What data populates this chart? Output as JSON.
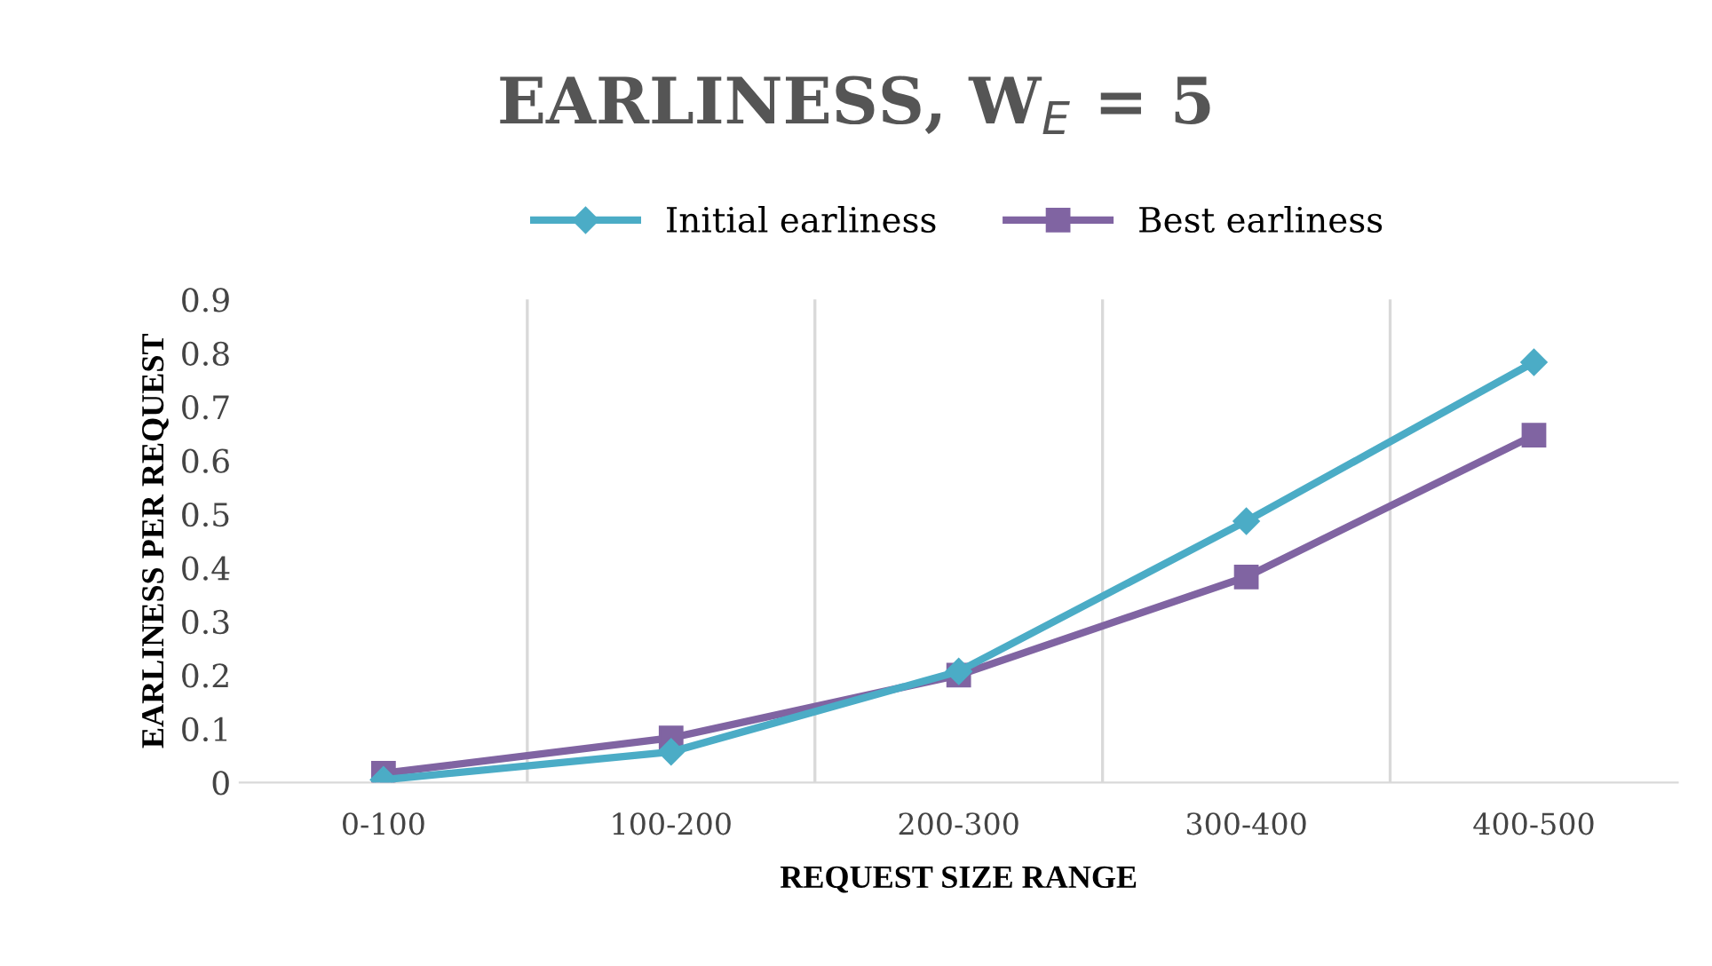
{
  "chart_data": {
    "type": "line",
    "title": "EARLINESS, W$_{E}$ = 5",
    "xlabel": "REQUEST SIZE RANGE",
    "ylabel": "EARLINESS PER REQUEST",
    "categories": [
      "0-100",
      "100-200",
      "200-300",
      "300-400",
      "400-500"
    ],
    "series": [
      {
        "name": "Initial earliness",
        "color": "#4bacc6",
        "marker": "diamond",
        "values": [
          0.005,
          0.057,
          0.207,
          0.487,
          0.783
        ]
      },
      {
        "name": "Best earliness",
        "color": "#8064a2",
        "marker": "square",
        "values": [
          0.017,
          0.083,
          0.2,
          0.383,
          0.647
        ]
      }
    ],
    "ylim": [
      0,
      0.9
    ],
    "yticks": [
      0,
      0.1,
      0.2,
      0.3,
      0.4,
      0.5,
      0.6,
      0.7,
      0.8,
      0.9
    ],
    "grid": "x",
    "legend": "top"
  }
}
